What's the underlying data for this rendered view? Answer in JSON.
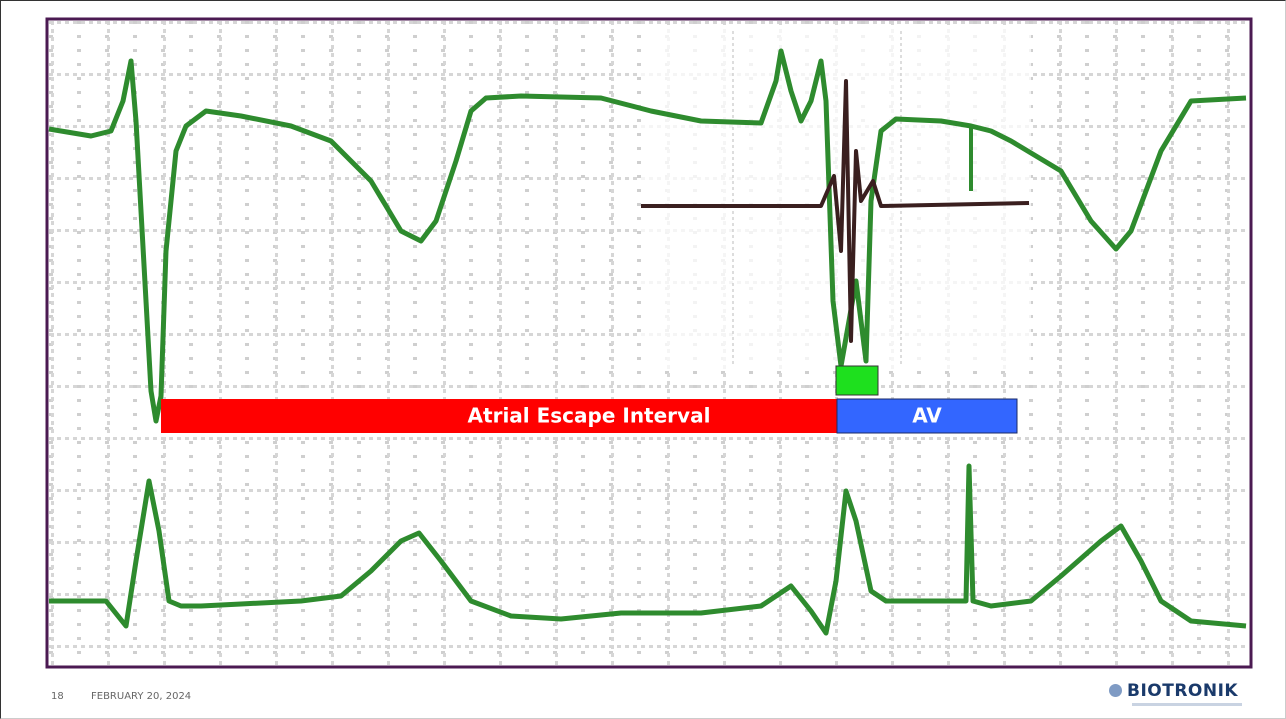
{
  "labels": {
    "escape_interval": "Atrial Escape Interval",
    "av": "AV"
  },
  "footer": {
    "page": "18",
    "date": "FEBRUARY 20, 2024",
    "logo": "BIOTRONIK"
  }
}
